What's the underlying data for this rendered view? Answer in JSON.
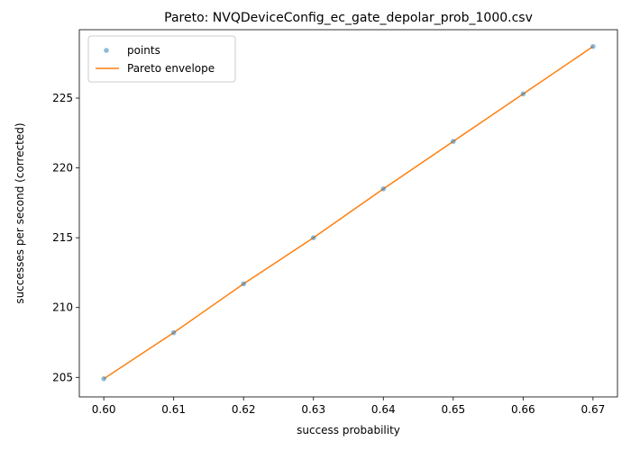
{
  "chart_data": {
    "type": "scatter",
    "title": "Pareto: NVQDeviceConfig_ec_gate_depolar_prob_1000.csv",
    "xlabel": "success probability",
    "ylabel": "successes per second (corrected)",
    "xlim": [
      0.5965,
      0.6735
    ],
    "ylim": [
      203.6,
      229.9
    ],
    "xticks": [
      0.6,
      0.61,
      0.62,
      0.63,
      0.64,
      0.65,
      0.66,
      0.67
    ],
    "xtick_labels": [
      "0.60",
      "0.61",
      "0.62",
      "0.63",
      "0.64",
      "0.65",
      "0.66",
      "0.67"
    ],
    "yticks": [
      205,
      210,
      215,
      220,
      225
    ],
    "ytick_labels": [
      "205",
      "210",
      "215",
      "220",
      "225"
    ],
    "grid": false,
    "legend_position": "top-left",
    "series": [
      {
        "name": "points",
        "kind": "scatter",
        "color": "#1f77b4",
        "x": [
          0.6,
          0.61,
          0.62,
          0.63,
          0.64,
          0.65,
          0.66,
          0.67
        ],
        "y": [
          204.9,
          208.2,
          211.7,
          215.0,
          218.5,
          221.9,
          225.3,
          228.7
        ]
      },
      {
        "name": "Pareto envelope",
        "kind": "line",
        "color": "#ff7f0e",
        "x": [
          0.6,
          0.61,
          0.62,
          0.63,
          0.64,
          0.65,
          0.66,
          0.67
        ],
        "y": [
          204.9,
          208.2,
          211.7,
          215.0,
          218.5,
          221.9,
          225.3,
          228.7
        ]
      }
    ]
  }
}
